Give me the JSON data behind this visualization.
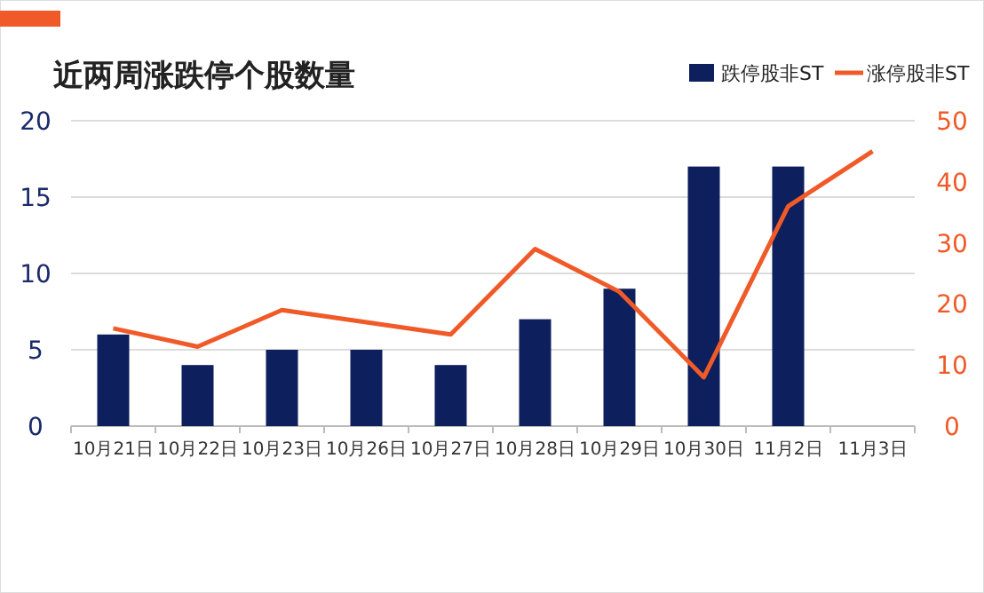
{
  "chart_data": {
    "type": "bar",
    "title": "近两周涨跌停个股数量",
    "categories": [
      "10月21日",
      "10月22日",
      "10月23日",
      "10月26日",
      "10月27日",
      "10月28日",
      "10月29日",
      "10月30日",
      "11月2日",
      "11月3日"
    ],
    "series": [
      {
        "name": "跌停股非ST",
        "color": "#0d1f5c",
        "values": [
          6,
          4,
          5,
          5,
          4,
          7,
          9,
          17,
          17,
          null
        ]
      },
      {
        "name": "涨停股非ST",
        "type": "line",
        "axis": "y2",
        "color": "#f05a28",
        "values": [
          16,
          13,
          19,
          17,
          15,
          29,
          22,
          8,
          36,
          45
        ]
      }
    ],
    "ylim": [
      0,
      20
    ],
    "yticks": [
      0,
      5,
      10,
      15,
      20
    ],
    "y2lim": [
      0,
      50
    ],
    "y2ticks": [
      0,
      10,
      20,
      30,
      40,
      50
    ],
    "grid": "y",
    "legend": "top right"
  }
}
